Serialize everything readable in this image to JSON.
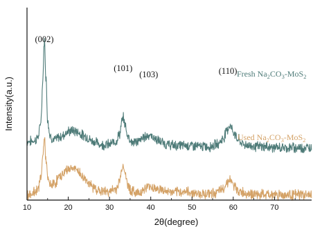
{
  "chart_data": {
    "type": "line",
    "xlabel": "2θ(degree)",
    "ylabel": "Intensity(a.u.)",
    "xlim": [
      10,
      79
    ],
    "xticks": [
      10,
      20,
      30,
      40,
      50,
      60,
      70
    ],
    "grid": false,
    "legend": "inline labels at right end of each curve",
    "colors": {
      "fresh": "#4e7b78",
      "used": "#d4a267",
      "axis": "#111111"
    },
    "peak_labels": [
      {
        "text": "(002)",
        "x": 14.2
      },
      {
        "text": "(101)",
        "x": 33.3
      },
      {
        "text": "(103)",
        "x": 39.5
      },
      {
        "text": "(110)",
        "x": 58.7
      }
    ],
    "series": [
      {
        "name": "Fresh Na2CO3-MoS2",
        "label_parts": [
          "Fresh Na",
          "2",
          "CO",
          "3",
          "-MoS",
          "2"
        ],
        "x": [
          10,
          11,
          12,
          12.8,
          13.4,
          13.8,
          14.2,
          14.6,
          15.0,
          15.6,
          16.5,
          18,
          20,
          21,
          22,
          24,
          26,
          28,
          30,
          31.5,
          32.5,
          33.0,
          33.3,
          33.7,
          34.3,
          35.5,
          37,
          38.5,
          39.5,
          40.5,
          42,
          44,
          46,
          48,
          50,
          52,
          54,
          56,
          57.5,
          58.5,
          59.2,
          60,
          61,
          62.5,
          64,
          66,
          68,
          70,
          72,
          74,
          76,
          79
        ],
        "y": [
          5.5,
          5.5,
          5.6,
          6.0,
          7.5,
          11.0,
          15.0,
          11.5,
          7.5,
          6.0,
          5.6,
          5.9,
          6.4,
          6.5,
          6.4,
          6.0,
          5.5,
          5.2,
          5.2,
          5.5,
          6.2,
          7.3,
          7.7,
          7.2,
          6.1,
          5.4,
          5.5,
          5.9,
          6.1,
          5.9,
          5.5,
          5.2,
          5.1,
          5.1,
          5.1,
          5.0,
          5.0,
          5.2,
          5.7,
          6.6,
          7.0,
          6.4,
          5.7,
          5.2,
          5.1,
          5.0,
          5.0,
          4.9,
          4.9,
          4.9,
          4.9,
          4.9
        ]
      },
      {
        "name": "Used Na2CO3-MoS2",
        "label_parts": [
          "Used Na",
          "2",
          "CO",
          "3",
          "-MoS",
          "2"
        ],
        "x": [
          10,
          11,
          12,
          12.8,
          13.4,
          13.8,
          14.2,
          14.6,
          15.0,
          15.6,
          16.5,
          18,
          20,
          21,
          22,
          24,
          26,
          28,
          30,
          31.5,
          32.5,
          33.0,
          33.3,
          33.7,
          34.3,
          35.5,
          37,
          38.5,
          39.5,
          40.5,
          42,
          44,
          46,
          48,
          50,
          52,
          54,
          56,
          57.5,
          58.5,
          59.2,
          60,
          61,
          62.5,
          64,
          66,
          68,
          70,
          72,
          74,
          76,
          79
        ],
        "y": [
          0.5,
          0.6,
          0.8,
          1.2,
          2.2,
          4.0,
          5.8,
          3.8,
          2.0,
          1.4,
          1.5,
          2.2,
          2.9,
          3.0,
          2.8,
          2.0,
          1.2,
          0.8,
          0.8,
          1.0,
          1.8,
          2.9,
          3.3,
          2.7,
          1.5,
          0.8,
          0.7,
          1.0,
          1.3,
          1.2,
          1.0,
          0.8,
          0.7,
          0.8,
          0.7,
          0.6,
          0.6,
          0.7,
          1.0,
          1.7,
          1.9,
          1.4,
          0.9,
          0.7,
          0.6,
          0.5,
          0.5,
          0.5,
          0.5,
          0.5,
          0.5,
          0.5
        ]
      }
    ]
  }
}
